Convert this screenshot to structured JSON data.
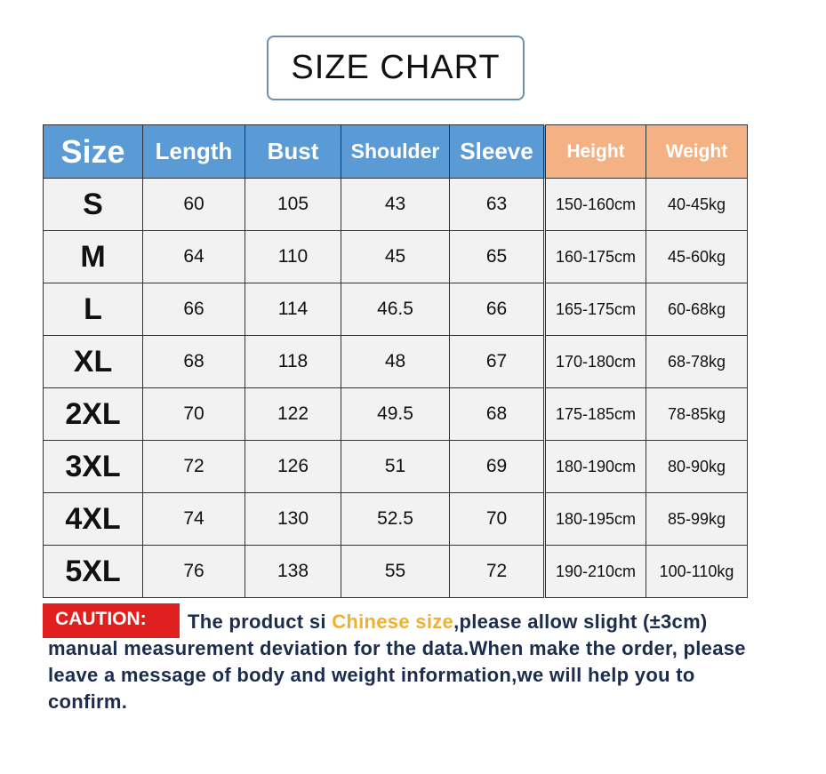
{
  "title": "SIZE CHART",
  "headers": [
    "Size",
    "Length",
    "Bust",
    "Shoulder",
    "Sleeve",
    "Height",
    "Weight"
  ],
  "rows": [
    [
      "S",
      "60",
      "105",
      "43",
      "63",
      "150-160cm",
      "40-45kg"
    ],
    [
      "M",
      "64",
      "110",
      "45",
      "65",
      "160-175cm",
      "45-60kg"
    ],
    [
      "L",
      "66",
      "114",
      "46.5",
      "66",
      "165-175cm",
      "60-68kg"
    ],
    [
      "XL",
      "68",
      "118",
      "48",
      "67",
      "170-180cm",
      "68-78kg"
    ],
    [
      "2XL",
      "70",
      "122",
      "49.5",
      "68",
      "175-185cm",
      "78-85kg"
    ],
    [
      "3XL",
      "72",
      "126",
      "51",
      "69",
      "180-190cm",
      "80-90kg"
    ],
    [
      "4XL",
      "74",
      "130",
      "52.5",
      "70",
      "180-195cm",
      "85-99kg"
    ],
    [
      "5XL",
      "76",
      "138",
      "55",
      "72",
      "190-210cm",
      "100-110kg"
    ]
  ],
  "colors": {
    "header_blue": "#5b9bd5",
    "header_orange": "#f4b183",
    "caution_red": "#e0201e",
    "highlight": "#f0b030",
    "text": "#1c2c4c"
  },
  "caution": {
    "label": "CAUTION:",
    "text_before": "The product si ",
    "highlight": "Chinese size",
    "text_after": ",please allow slight (±3cm) manual measurement deviation for the data.When make the order, please leave a message of body and weight information,we will help you to confirm."
  }
}
